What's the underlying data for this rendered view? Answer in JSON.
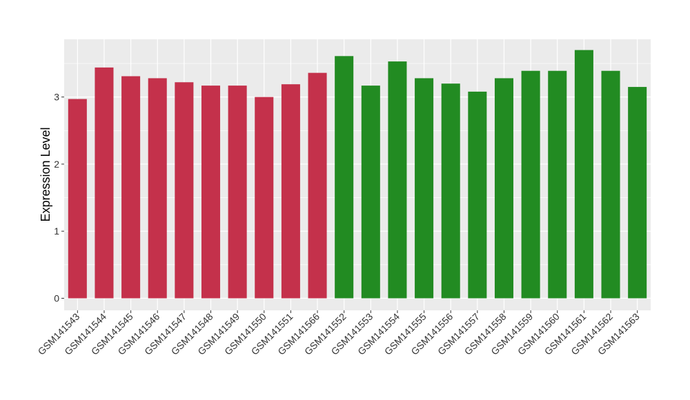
{
  "chart_data": {
    "type": "bar",
    "ylabel": "Expression Level",
    "xlabel": "",
    "ylim": [
      -0.18,
      3.86
    ],
    "yticks": [
      0,
      1,
      2,
      3
    ],
    "grid": true,
    "colors": {
      "group1": "#c4314b",
      "group2": "#228b22",
      "panel": "#ebebeb",
      "gridline": "#ffffff"
    },
    "categories": [
      "GSM141543",
      "GSM141544",
      "GSM141545",
      "GSM141546",
      "GSM141547",
      "GSM141548",
      "GSM141549",
      "GSM141550",
      "GSM141551",
      "GSM141566",
      "GSM141552",
      "GSM141553",
      "GSM141554",
      "GSM141555",
      "GSM141556",
      "GSM141557",
      "GSM141558",
      "GSM141559",
      "GSM141560",
      "GSM141561",
      "GSM141562",
      "GSM141563"
    ],
    "values": [
      2.97,
      3.44,
      3.31,
      3.28,
      3.22,
      3.17,
      3.17,
      3.0,
      3.19,
      3.36,
      3.61,
      3.17,
      3.53,
      3.28,
      3.2,
      3.08,
      3.28,
      3.39,
      3.39,
      3.7,
      3.39,
      3.15
    ],
    "bar_groups": [
      1,
      1,
      1,
      1,
      1,
      1,
      1,
      1,
      1,
      1,
      2,
      2,
      2,
      2,
      2,
      2,
      2,
      2,
      2,
      2,
      2,
      2
    ]
  }
}
